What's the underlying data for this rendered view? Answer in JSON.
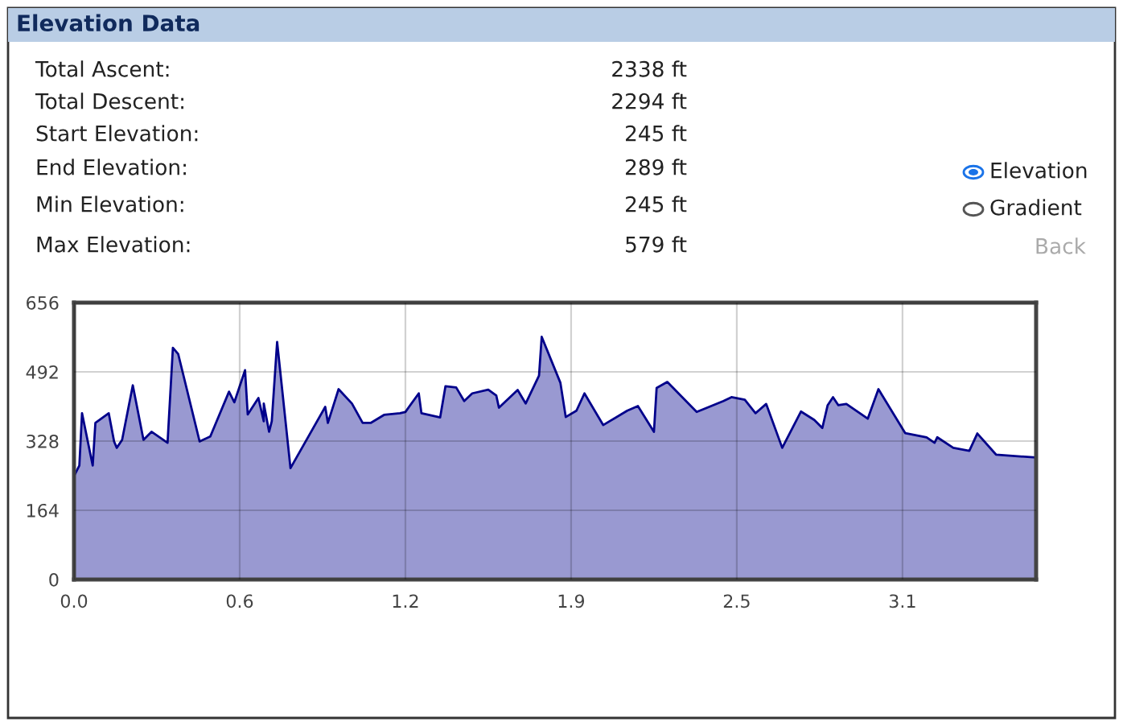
{
  "chart_data": {
    "type": "area",
    "title": "Elevation Data",
    "annotations": [
      "Total Ascent:",
      "2338 ft",
      "Total Descent:",
      "2294 ft",
      "Start Elevation:",
      "245 ft",
      "End Elevation:",
      "289 ft",
      "Min Elevation:",
      "245 ft",
      "Max Elevation:",
      "579 ft",
      "Elevation",
      "Gradient",
      "Back"
    ],
    "x": [
      0.0,
      0.02,
      0.03,
      0.07,
      0.08,
      0.13,
      0.15,
      0.16,
      0.18,
      0.22,
      0.26,
      0.29,
      0.35,
      0.37,
      0.39,
      0.47,
      0.51,
      0.58,
      0.6,
      0.64,
      0.65,
      0.69,
      0.71,
      0.71,
      0.73,
      0.74,
      0.76,
      0.81,
      0.94,
      0.95,
      0.99,
      1.04,
      1.08,
      1.11,
      1.16,
      1.22,
      1.24,
      1.29,
      1.3,
      1.37,
      1.39,
      1.43,
      1.46,
      1.49,
      1.55,
      1.58,
      1.59,
      1.66,
      1.69,
      1.74,
      1.75,
      1.82,
      1.84,
      1.88,
      1.91,
      1.98,
      2.07,
      2.11,
      2.17,
      2.18,
      2.22,
      2.33,
      2.43,
      2.46,
      2.51,
      2.55,
      2.59,
      2.65,
      2.72,
      2.77,
      2.8,
      2.82,
      2.84,
      2.86,
      2.89,
      2.97,
      3.01,
      3.11,
      3.19,
      3.22,
      3.23,
      3.29,
      3.35,
      3.38,
      3.45,
      3.6
    ],
    "series": [
      {
        "color": "#00008b",
        "values": [
          245,
          270,
          394,
          270,
          371,
          394,
          327,
          312,
          331,
          460,
          331,
          350,
          324,
          549,
          534,
          327,
          339,
          445,
          420,
          496,
          391,
          430,
          375,
          417,
          350,
          375,
          563,
          264,
          409,
          371,
          451,
          417,
          371,
          371,
          390,
          394,
          397,
          441,
          394,
          384,
          458,
          455,
          423,
          441,
          450,
          436,
          407,
          449,
          417,
          483,
          575,
          466,
          385,
          400,
          441,
          366,
          400,
          411,
          350,
          454,
          468,
          397,
          423,
          432,
          426,
          394,
          416,
          312,
          398,
          378,
          359,
          413,
          432,
          413,
          416,
          381,
          451,
          347,
          337,
          324,
          337,
          312,
          305,
          346,
          296,
          289
        ]
      }
    ],
    "xlim": [
      0,
      3.6
    ],
    "ylim": [
      0,
      656
    ],
    "xticks": [
      {
        "value": 0,
        "label": "0.0"
      },
      {
        "value": 0.62,
        "label": "0.6"
      },
      {
        "value": 1.24,
        "label": "1.2"
      },
      {
        "value": 1.86,
        "label": "1.9"
      },
      {
        "value": 2.48,
        "label": "2.5"
      },
      {
        "value": 3.1,
        "label": "3.1"
      }
    ],
    "yticks": [
      0,
      164,
      328,
      492,
      656
    ],
    "grid": true,
    "legend": false
  }
}
